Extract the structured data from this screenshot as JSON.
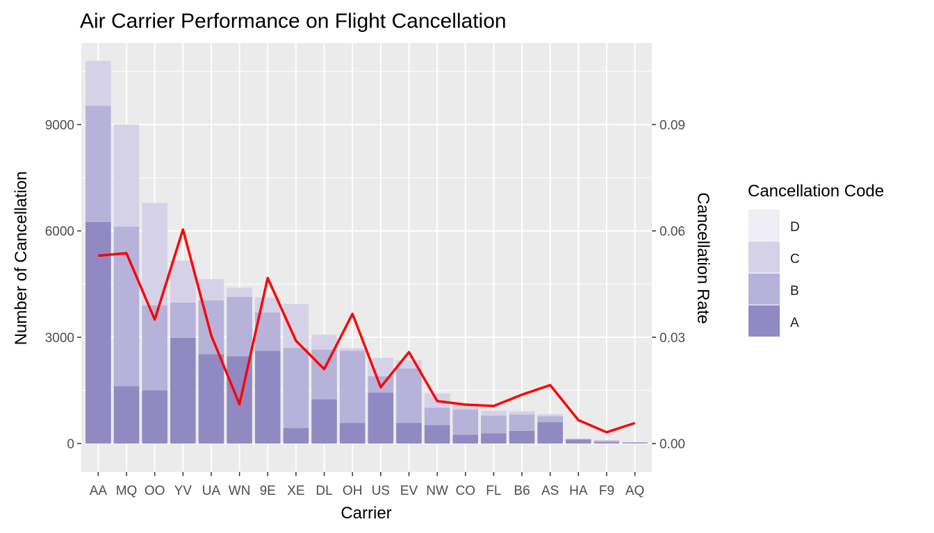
{
  "chart_data": {
    "type": "bar",
    "stacked": true,
    "title": "Air Carrier Performance on Flight Cancellation",
    "xlabel": "Carrier",
    "ylabel": "Number of Cancellation",
    "y2label": "Cancellation Rate",
    "ylim": [
      -800,
      11300
    ],
    "y2lim": [
      -0.008,
      0.113
    ],
    "yticks": [
      0,
      3000,
      6000,
      9000
    ],
    "y2ticks": [
      0,
      0.03,
      0.06,
      0.09
    ],
    "y2tick_labels": [
      "0.00",
      "0.03",
      "0.06",
      "0.09"
    ],
    "grid": true,
    "legend": {
      "title": "Cancellation Code",
      "position": "right"
    },
    "categories": [
      "AA",
      "MQ",
      "OO",
      "YV",
      "UA",
      "WN",
      "9E",
      "XE",
      "DL",
      "OH",
      "US",
      "EV",
      "NW",
      "CO",
      "FL",
      "B6",
      "AS",
      "HA",
      "F9",
      "AQ"
    ],
    "series": [
      {
        "name": "A",
        "color": "#9189c2",
        "values": [
          6250,
          1620,
          1500,
          2980,
          2520,
          2460,
          2620,
          440,
          1250,
          580,
          1440,
          580,
          520,
          250,
          290,
          360,
          600,
          110,
          40,
          20
        ]
      },
      {
        "name": "B",
        "color": "#b6b2d9",
        "values": [
          3280,
          4500,
          2400,
          1000,
          1520,
          1680,
          1080,
          2260,
          1400,
          2040,
          460,
          1540,
          490,
          710,
          500,
          460,
          170,
          20,
          40,
          20
        ]
      },
      {
        "name": "C",
        "color": "#d5d2e8",
        "values": [
          1270,
          2880,
          2890,
          1180,
          600,
          260,
          420,
          1240,
          420,
          70,
          520,
          230,
          410,
          170,
          140,
          90,
          60,
          10,
          20,
          0
        ]
      },
      {
        "name": "D",
        "color": "#efedf5",
        "values": [
          0,
          0,
          0,
          0,
          0,
          0,
          0,
          0,
          0,
          0,
          0,
          0,
          0,
          0,
          0,
          0,
          0,
          0,
          0,
          0
        ]
      }
    ],
    "line": {
      "name": "Cancellation Rate",
      "axis": "right",
      "color": "#ff0000",
      "values": [
        0.053,
        0.0537,
        0.035,
        0.0604,
        0.0305,
        0.0111,
        0.0467,
        0.029,
        0.021,
        0.0366,
        0.0159,
        0.0258,
        0.012,
        0.011,
        0.0106,
        0.0138,
        0.0165,
        0.0066,
        0.0032,
        0.0058
      ]
    }
  }
}
